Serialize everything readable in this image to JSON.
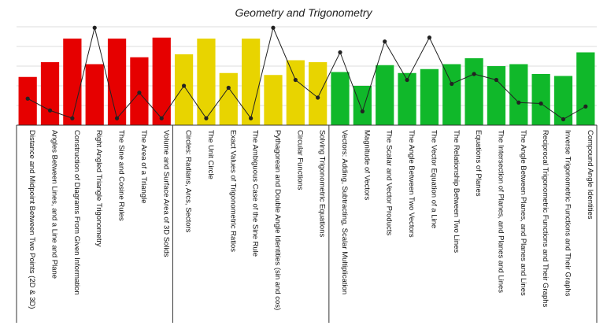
{
  "chart_data": {
    "type": "bar",
    "title": "Geometry and Trigonometry",
    "xlabel": "",
    "ylabel": "",
    "ylim": [
      0,
      100
    ],
    "grid": true,
    "categories": [
      "Distance and Midpoint Between Two Points (2D & 3D)",
      "Angles Between Lines, and a Line and Plane",
      "Construction of Diagrams From Given Information",
      "Right Angled Triangle Trigonometry",
      "The Sine and Cosine Rules",
      "The Area of a Triangle",
      "Volume and Surface Area of 3D Solids",
      "Circles: Radians, Arcs, Sectors",
      "The Unit Circle",
      "Exact Values of Trigonometric Ratios",
      "The Ambiguous Case of the Sine Rule",
      "Pythagorean and Double Angle Identities (sin and cos)",
      "Circular Functions",
      "Solving Trigonometric Equations",
      "Vectors: Adding, Subtracting, Scalar Multiplication",
      "Magnitude of Vectors",
      "The Scalar and Vector Products",
      "The Angle Between Two Vectors",
      "The Vector Equation of a Line",
      "The Relationship Between Two Lines",
      "Equations of Planes",
      "The Intersection of Planes, and Planes and Lines",
      "The Angle Between Planes, and Planes and Lines",
      "Reciprocal Trigonometric Functions and Their Graphs",
      "Inverse Trigonometric Functions and Their Graphs",
      "Compound Angle Identities"
    ],
    "series": [
      {
        "kind": "bar",
        "values": [
          49,
          64,
          88,
          62,
          88,
          69,
          89,
          72,
          88,
          53,
          88,
          51,
          66,
          64,
          54,
          40,
          61,
          53,
          57,
          62,
          68,
          60,
          62,
          52,
          50,
          74
        ],
        "colors": [
          "#e60000",
          "#e60000",
          "#e60000",
          "#e60000",
          "#e60000",
          "#e60000",
          "#e60000",
          "#e8d400",
          "#e8d400",
          "#e8d400",
          "#e8d400",
          "#e8d400",
          "#e8d400",
          "#e8d400",
          "#10b82a",
          "#10b82a",
          "#10b82a",
          "#10b82a",
          "#10b82a",
          "#10b82a",
          "#10b82a",
          "#10b82a",
          "#10b82a",
          "#10b82a",
          "#10b82a",
          "#10b82a"
        ]
      },
      {
        "kind": "line",
        "color": "#222222",
        "values": [
          27,
          15,
          7,
          99,
          7,
          33,
          7,
          40,
          7,
          38,
          7,
          99,
          46,
          28,
          74,
          14,
          85,
          46,
          89,
          42,
          52,
          46,
          23,
          22,
          6,
          19
        ]
      }
    ],
    "group_colors": {
      "red": "#e60000",
      "yellow": "#e8d400",
      "green": "#10b82a"
    }
  }
}
